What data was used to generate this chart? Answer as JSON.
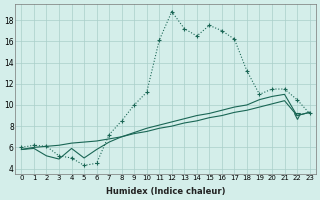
{
  "xlabel": "Humidex (Indice chaleur)",
  "bg_color": "#d4eeea",
  "grid_color": "#aacfca",
  "line_color": "#1a6655",
  "x_ticks": [
    0,
    1,
    2,
    3,
    4,
    5,
    6,
    7,
    8,
    9,
    10,
    11,
    12,
    13,
    14,
    15,
    16,
    17,
    18,
    19,
    20,
    21,
    22,
    23
  ],
  "ylim": [
    3.5,
    19.5
  ],
  "yticks": [
    4,
    6,
    8,
    10,
    12,
    14,
    16,
    18
  ],
  "series1_dotted": [
    6.0,
    6.2,
    6.1,
    5.2,
    5.0,
    4.3,
    4.5,
    7.2,
    8.5,
    10.0,
    11.2,
    16.1,
    18.8,
    17.2,
    16.5,
    17.5,
    17.0,
    16.2,
    13.2,
    11.0,
    11.5,
    11.5,
    10.5,
    9.2
  ],
  "series2_solid_trend": [
    5.8,
    6.0,
    6.1,
    6.2,
    6.4,
    6.5,
    6.6,
    6.8,
    7.0,
    7.3,
    7.5,
    7.8,
    8.0,
    8.3,
    8.5,
    8.8,
    9.0,
    9.3,
    9.5,
    9.8,
    10.1,
    10.4,
    9.0,
    9.3
  ],
  "series3_solid_triangle": [
    5.8,
    5.9,
    5.2,
    4.9,
    5.9,
    5.0,
    5.8,
    6.5,
    7.0,
    7.4,
    7.8,
    8.1,
    8.4,
    8.7,
    9.0,
    9.2,
    9.5,
    9.8,
    10.0,
    10.5,
    10.8,
    11.0,
    9.0,
    9.3
  ]
}
